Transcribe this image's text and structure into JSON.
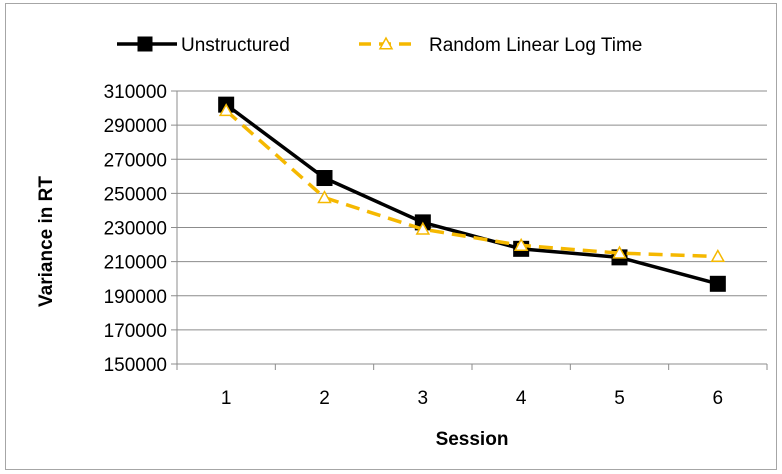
{
  "chart_data": {
    "type": "line",
    "title": "",
    "xlabel": "Session",
    "ylabel": "Variance in RT",
    "x": [
      1,
      2,
      3,
      4,
      5,
      6
    ],
    "x_tick_labels": [
      "1",
      "2",
      "3",
      "4",
      "5",
      "6"
    ],
    "ylim": [
      150000,
      310000
    ],
    "y_ticks": [
      150000,
      170000,
      190000,
      210000,
      230000,
      250000,
      270000,
      290000,
      310000
    ],
    "y_tick_labels": [
      "150000",
      "170000",
      "190000",
      "210000",
      "230000",
      "250000",
      "270000",
      "290000",
      "310000"
    ],
    "grid": "horizontal",
    "legend_position": "top",
    "series": [
      {
        "name": "Unstructured",
        "values": [
          302000,
          259000,
          233000,
          217500,
          212500,
          197000
        ],
        "color": "#000000",
        "line_style": "solid",
        "marker": "square"
      },
      {
        "name": "Random Linear Log Time",
        "values": [
          298500,
          247500,
          229000,
          219500,
          215000,
          213000
        ],
        "color": "#f5b800",
        "line_style": "dashed",
        "marker": "triangle"
      }
    ]
  }
}
